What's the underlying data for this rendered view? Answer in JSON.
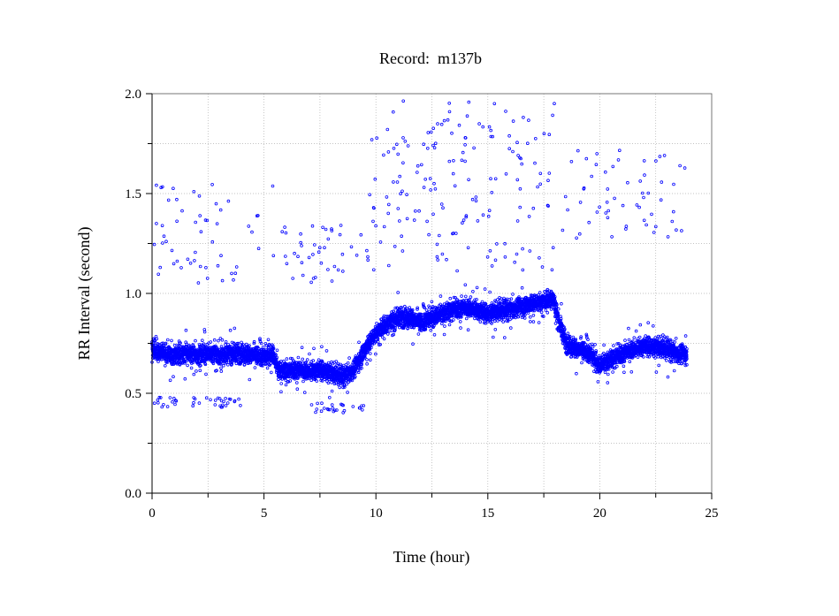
{
  "chart_data": {
    "type": "scatter",
    "title": "Record:  m137b",
    "xlabel": "Time (hour)",
    "ylabel": "RR Interval (second)",
    "xlim": [
      0,
      25
    ],
    "ylim": [
      0.0,
      2.0
    ],
    "x_ticks": [
      "0",
      "5",
      "10",
      "15",
      "20",
      "25"
    ],
    "y_ticks": [
      "0.0",
      "0.5",
      "1.0",
      "1.5",
      "2.0"
    ],
    "grid": true,
    "point_color": "#0000ff",
    "baseline_profile": {
      "x": [
        0.0,
        0.5,
        1.0,
        1.5,
        2.0,
        2.5,
        3.0,
        3.5,
        4.0,
        4.5,
        5.0,
        5.4,
        5.6,
        6.0,
        6.5,
        7.0,
        7.5,
        8.0,
        8.5,
        9.0,
        9.5,
        10.0,
        10.5,
        11.0,
        11.5,
        12.0,
        12.5,
        13.0,
        13.5,
        14.0,
        14.5,
        15.0,
        15.5,
        16.0,
        16.5,
        17.0,
        17.5,
        17.9,
        18.2,
        18.5,
        19.0,
        19.5,
        20.0,
        20.5,
        21.0,
        21.5,
        22.0,
        22.5,
        23.0,
        23.5,
        23.9
      ],
      "y": [
        0.72,
        0.7,
        0.69,
        0.7,
        0.69,
        0.7,
        0.69,
        0.7,
        0.7,
        0.69,
        0.68,
        0.7,
        0.62,
        0.61,
        0.62,
        0.61,
        0.62,
        0.6,
        0.58,
        0.62,
        0.72,
        0.8,
        0.85,
        0.88,
        0.88,
        0.85,
        0.88,
        0.9,
        0.92,
        0.93,
        0.92,
        0.9,
        0.91,
        0.92,
        0.94,
        0.95,
        0.96,
        0.98,
        0.85,
        0.75,
        0.72,
        0.7,
        0.64,
        0.67,
        0.7,
        0.72,
        0.74,
        0.73,
        0.72,
        0.7,
        0.7
      ]
    },
    "outlier_bands": [
      {
        "x": [
          0.0,
          5.5
        ],
        "y_min": 1.05,
        "y_max": 1.55
      },
      {
        "x": [
          0.0,
          4.0
        ],
        "y_min": 0.43,
        "y_max": 0.48
      },
      {
        "x": [
          5.5,
          9.5
        ],
        "y_min": 1.05,
        "y_max": 1.35
      },
      {
        "x": [
          7.0,
          9.5
        ],
        "y_min": 0.4,
        "y_max": 0.46
      },
      {
        "x": [
          9.5,
          18.0
        ],
        "y_min": 1.55,
        "y_max": 1.98
      },
      {
        "x": [
          9.5,
          18.0
        ],
        "y_min": 1.1,
        "y_max": 1.55
      },
      {
        "x": [
          18.0,
          23.8
        ],
        "y_min": 1.25,
        "y_max": 1.72
      }
    ]
  }
}
